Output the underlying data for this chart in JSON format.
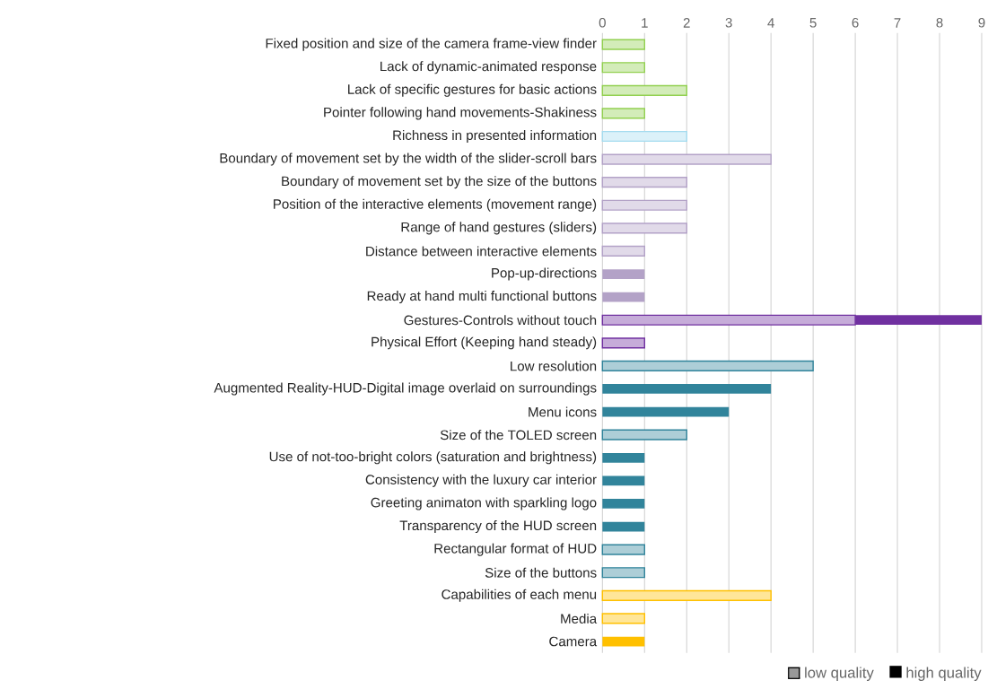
{
  "chart_data": {
    "type": "bar",
    "orientation": "horizontal",
    "stacked": true,
    "categories": [
      "Fixed position and size of the camera frame-view finder",
      "Lack of dynamic-animated response",
      "Lack of specific gestures for basic actions",
      "Pointer following hand movements-Shakiness",
      "Richness in presented information",
      "Boundary of movement set by the width of the slider-scroll bars",
      "Boundary of movement set by the size of the buttons",
      "Position of the interactive elements (movement range)",
      "Range of hand gestures (sliders)",
      "Distance between interactive elements",
      "Pop-up-directions",
      "Ready at hand multi functional buttons",
      "Gestures-Controls without touch",
      "Physical Effort (Keeping hand steady)",
      "Low resolution",
      "Augmented Reality-HUD-Digital image overlaid on surroundings",
      "Menu icons",
      "Size of the TOLED screen",
      "Use of not-too-bright colors (saturation and brightness)",
      "Consistency with the luxury car interior",
      "Greeting animaton with sparkling logo",
      "Transparency of the HUD screen",
      "Rectangular format of HUD",
      "Size of the buttons",
      "Capabilities of each menu",
      "Media",
      "Camera"
    ],
    "series": [
      {
        "name": "low quality",
        "values": [
          1,
          1,
          2,
          1,
          2,
          4,
          2,
          2,
          2,
          1,
          null,
          null,
          6,
          1,
          5,
          null,
          null,
          2,
          null,
          null,
          null,
          null,
          1,
          1,
          4,
          1,
          null
        ],
        "colors": [
          "#92d050",
          "#92d050",
          "#92d050",
          "#92d050",
          "#a5dcef",
          "#b3a2c7",
          "#b3a2c7",
          "#b3a2c7",
          "#b3a2c7",
          "#b3a2c7",
          "#b3a2c7",
          "#b3a2c7",
          "#7030a0",
          "#7030a0",
          "#31849b",
          "#31849b",
          "#31849b",
          "#31849b",
          "#31849b",
          "#31849b",
          "#31849b",
          "#31849b",
          "#31849b",
          "#31849b",
          "#ffc000",
          "#ffc000",
          "#ffc000"
        ]
      },
      {
        "name": "high quality",
        "values": [
          null,
          null,
          null,
          null,
          null,
          null,
          null,
          null,
          null,
          null,
          1,
          1,
          3,
          null,
          null,
          4,
          3,
          null,
          1,
          1,
          1,
          1,
          null,
          null,
          null,
          null,
          1
        ],
        "colors": [
          "#92d050",
          "#92d050",
          "#92d050",
          "#92d050",
          "#a5dcef",
          "#b3a2c7",
          "#b3a2c7",
          "#b3a2c7",
          "#b3a2c7",
          "#b3a2c7",
          "#b3a2c7",
          "#b3a2c7",
          "#7030a0",
          "#7030a0",
          "#31849b",
          "#31849b",
          "#31849b",
          "#31849b",
          "#31849b",
          "#31849b",
          "#31849b",
          "#31849b",
          "#31849b",
          "#31849b",
          "#ffc000",
          "#ffc000",
          "#ffc000"
        ]
      }
    ],
    "xlim": [
      0,
      9
    ],
    "xticks": [
      0,
      1,
      2,
      3,
      4,
      5,
      6,
      7,
      8,
      9
    ],
    "grid": "x",
    "legend": "bottom right"
  }
}
